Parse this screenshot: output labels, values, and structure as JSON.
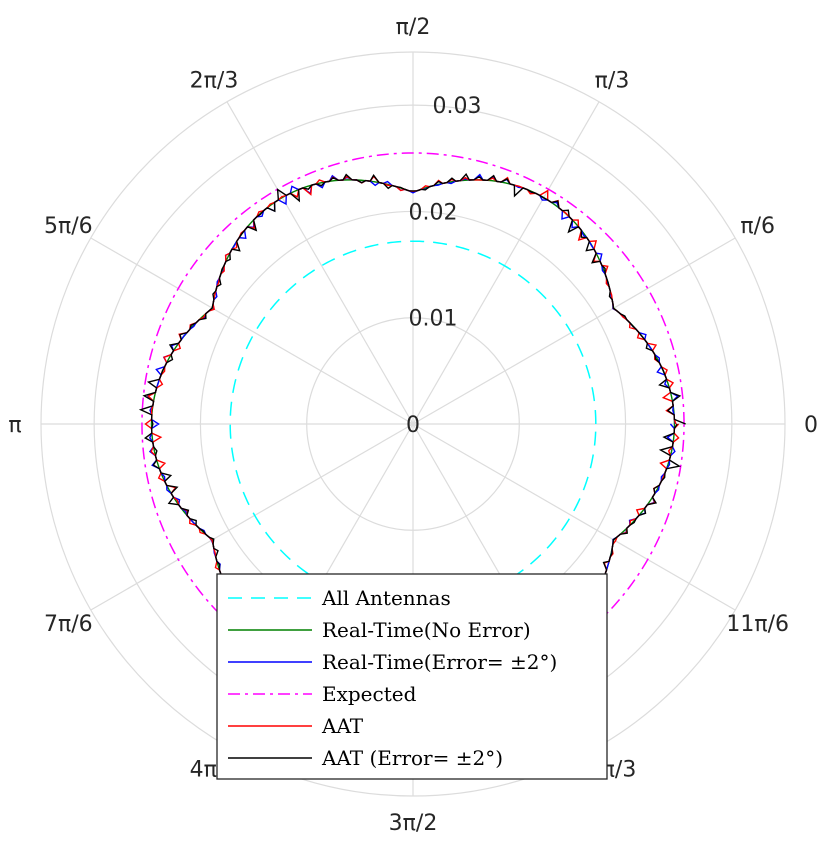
{
  "chart_data": {
    "type": "polar",
    "title": "",
    "r_lim": [
      0,
      0.035
    ],
    "r_ticks": [
      {
        "value": 0,
        "label": "0"
      },
      {
        "value": 0.01,
        "label": "0.01"
      },
      {
        "value": 0.02,
        "label": "0.02"
      },
      {
        "value": 0.03,
        "label": "0.03"
      }
    ],
    "r_label_angle": "pi/2",
    "theta_ticks": [
      {
        "value_deg": 0,
        "label": "0"
      },
      {
        "value_deg": 30,
        "label": "π/6"
      },
      {
        "value_deg": 60,
        "label": "π/3"
      },
      {
        "value_deg": 90,
        "label": "π/2"
      },
      {
        "value_deg": 120,
        "label": "2π/3"
      },
      {
        "value_deg": 150,
        "label": "5π/6"
      },
      {
        "value_deg": 180,
        "label": "π"
      },
      {
        "value_deg": 210,
        "label": "7π/6"
      },
      {
        "value_deg": 240,
        "label": "4π/3"
      },
      {
        "value_deg": 270,
        "label": "3π/2"
      },
      {
        "value_deg": 300,
        "label": "5π/3"
      },
      {
        "value_deg": 330,
        "label": "11π/6"
      }
    ],
    "grid": true,
    "legend_position": "bottom-center",
    "series": [
      {
        "name": "All Antennas",
        "color": "#00ffff",
        "style": "dashed",
        "r_constant": 0.0172,
        "perturbation": 0
      },
      {
        "name": "Real-Time(No Error)",
        "color": "#008000",
        "style": "solid",
        "r_base": 0.0218,
        "r_amplitude": 0.0028,
        "lobes": 6,
        "perturbation": 0,
        "seed": 1
      },
      {
        "name": "Real-Time(Error= ±2°)",
        "color": "#0000ff",
        "style": "solid",
        "r_base": 0.0218,
        "r_amplitude": 0.0028,
        "lobes": 6,
        "perturbation": 0.0006,
        "seed": 7
      },
      {
        "name": "Expected",
        "color": "#ff00ff",
        "style": "dashdot",
        "r_constant": 0.0255,
        "perturbation": 0
      },
      {
        "name": "AAT",
        "color": "#ff0000",
        "style": "solid",
        "r_base": 0.0218,
        "r_amplitude": 0.0028,
        "lobes": 6,
        "perturbation": 0.0007,
        "seed": 13
      },
      {
        "name": "AAT (Error= ±2°)",
        "color": "#000000",
        "style": "solid",
        "r_base": 0.0218,
        "r_amplitude": 0.0028,
        "lobes": 6,
        "perturbation": 0.0009,
        "seed": 29
      }
    ]
  }
}
